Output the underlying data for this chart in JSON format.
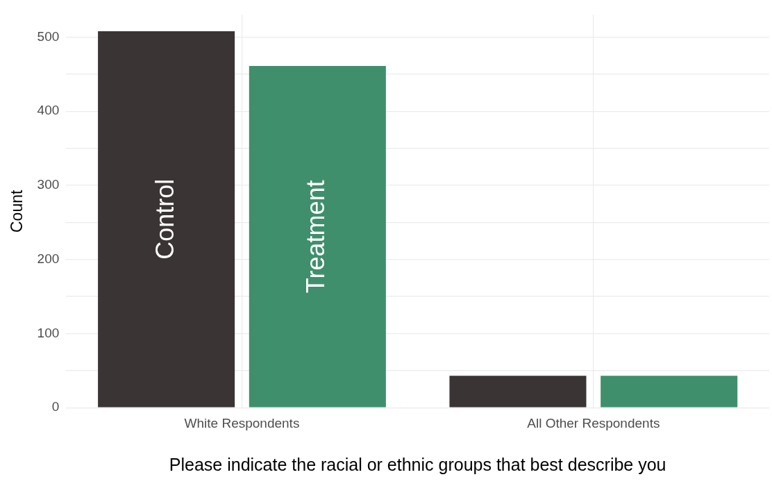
{
  "chart_data": {
    "type": "bar",
    "xlabel": "Please indicate the racial or ethnic groups that best describe you",
    "ylabel": "Count",
    "categories": [
      "White Respondents",
      "All Other Respondents"
    ],
    "series": [
      {
        "name": "Control",
        "color": "#3a3435",
        "values": [
          508,
          43
        ]
      },
      {
        "name": "Treatment",
        "color": "#3f8f6c",
        "values": [
          461,
          43
        ]
      }
    ],
    "ylim": [
      0,
      530
    ],
    "yticks": [
      0,
      {
        "value": 50,
        "label": null
      },
      100,
      {
        "value": 150,
        "label": null
      },
      200,
      {
        "value": 250,
        "label": null
      },
      300,
      {
        "value": 350,
        "label": null
      },
      400,
      {
        "value": 450,
        "label": null
      },
      500
    ],
    "grid": true,
    "legend": false
  }
}
